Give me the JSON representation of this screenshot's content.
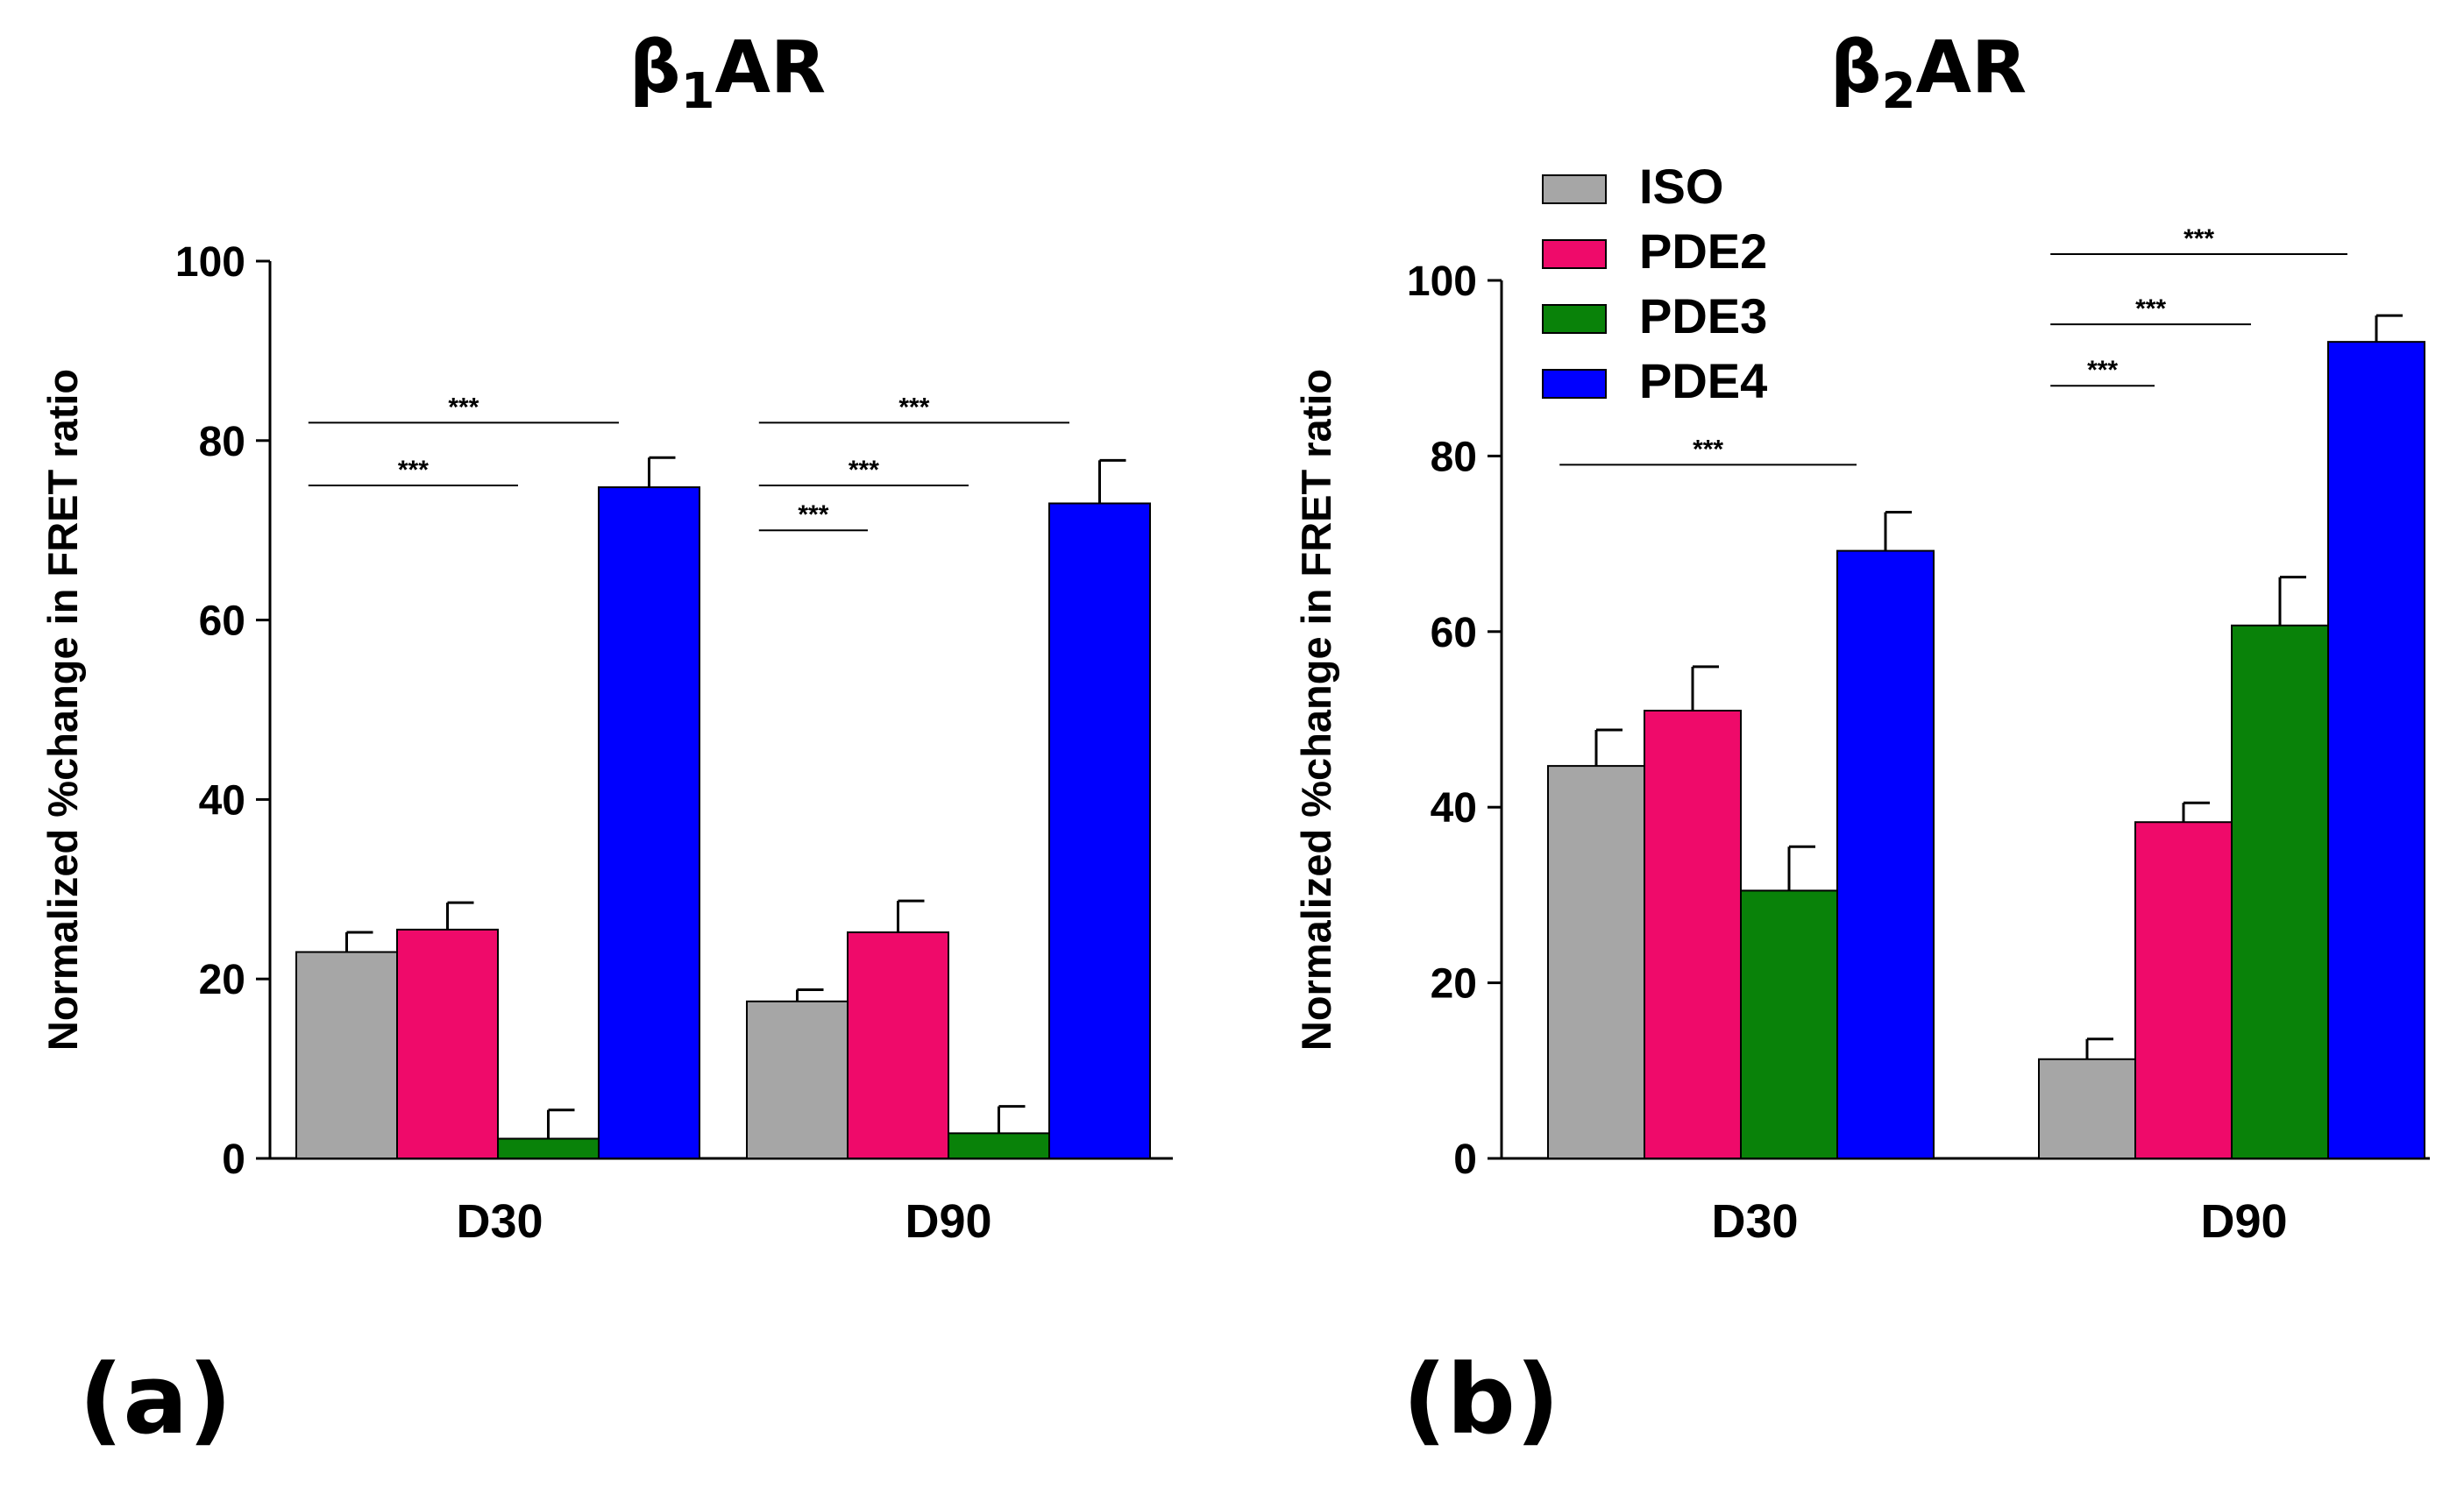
{
  "chart_data": [
    {
      "type": "bar",
      "panel_label": "(a)",
      "title_main": "β",
      "title_sub": "1",
      "title_suffix": "AR",
      "ylabel": "Normalized %change in FRET  ratio",
      "ylim": [
        0,
        100
      ],
      "yticks": [
        "0",
        "20",
        "40",
        "60",
        "80",
        "100"
      ],
      "categories": [
        "D30",
        "D90"
      ],
      "series": [
        {
          "name": "ISO",
          "color": "#a6a6a6",
          "values": [
            23,
            17.5
          ],
          "errors": [
            2.2,
            1.3
          ]
        },
        {
          "name": "PDE2",
          "color": "#ef0a6a",
          "values": [
            25.5,
            25.2
          ],
          "errors": [
            3.0,
            3.5
          ]
        },
        {
          "name": "PDE3",
          "color": "#098209",
          "values": [
            2.2,
            2.8
          ],
          "errors": [
            3.2,
            3.0
          ]
        },
        {
          "name": "PDE4",
          "color": "#0000ff",
          "values": [
            74.8,
            73
          ],
          "errors": [
            3.3,
            4.8
          ]
        }
      ],
      "significance": [
        {
          "category": "D30",
          "from": 0,
          "to": 2,
          "y": 75,
          "label": "***"
        },
        {
          "category": "D30",
          "from": 0,
          "to": 3,
          "y": 82,
          "label": "***"
        },
        {
          "category": "D90",
          "from": 0,
          "to": 1,
          "y": 70,
          "label": "***"
        },
        {
          "category": "D90",
          "from": 0,
          "to": 2,
          "y": 75,
          "label": "***"
        },
        {
          "category": "D90",
          "from": 0,
          "to": 3,
          "y": 82,
          "label": "***"
        }
      ]
    },
    {
      "type": "bar",
      "panel_label": "(b)",
      "title_main": "β",
      "title_sub": "2",
      "title_suffix": "AR",
      "ylabel": "Normalized %change in FRET  ratio",
      "ylim": [
        0,
        100
      ],
      "yticks": [
        "0",
        "20",
        "40",
        "60",
        "80",
        "100"
      ],
      "categories": [
        "D30",
        "D90"
      ],
      "legend": [
        "ISO",
        "PDE2",
        "PDE3",
        "PDE4"
      ],
      "series": [
        {
          "name": "ISO",
          "color": "#a6a6a6",
          "values": [
            44.7,
            11.3
          ],
          "errors": [
            4.1,
            2.3
          ]
        },
        {
          "name": "PDE2",
          "color": "#ef0a6a",
          "values": [
            51,
            38.3
          ],
          "errors": [
            5.0,
            2.2
          ]
        },
        {
          "name": "PDE3",
          "color": "#098209",
          "values": [
            30.5,
            60.7
          ],
          "errors": [
            5.0,
            5.5
          ]
        },
        {
          "name": "PDE4",
          "color": "#0000ff",
          "values": [
            69.2,
            93
          ],
          "errors": [
            4.4,
            3.0
          ]
        }
      ],
      "significance": [
        {
          "category": "D30",
          "from": 0,
          "to": 3,
          "y": 79,
          "label": "***"
        },
        {
          "category": "D90",
          "from": 0,
          "to": 1,
          "y": 88,
          "label": "***"
        },
        {
          "category": "D90",
          "from": 0,
          "to": 2,
          "y": 95,
          "label": "***"
        },
        {
          "category": "D90",
          "from": 0,
          "to": 3,
          "y": 103,
          "label": "***"
        }
      ]
    }
  ]
}
